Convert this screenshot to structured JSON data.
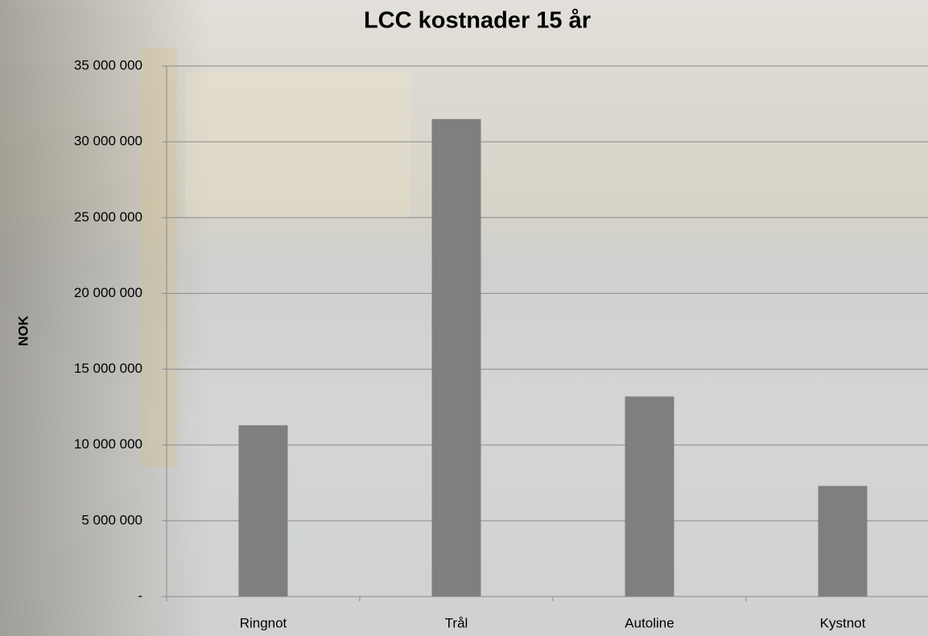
{
  "chart_data": {
    "type": "bar",
    "title": "LCC kostnader 15 år",
    "y_label": "NOK",
    "categories": [
      "Ringnot",
      "Trål",
      "Autoline",
      "Kystnot"
    ],
    "values": [
      11300000,
      31500000,
      13200000,
      7300000
    ],
    "color": "#7f7f7f",
    "ylim": [
      0,
      35000000
    ],
    "yticks": [
      {
        "value": 0,
        "label": "-"
      },
      {
        "value": 5000000,
        "label": "5 000 000"
      },
      {
        "value": 10000000,
        "label": "10 000 000"
      },
      {
        "value": 15000000,
        "label": "15 000 000"
      },
      {
        "value": 20000000,
        "label": "20 000 000"
      },
      {
        "value": 25000000,
        "label": "25 000 000"
      },
      {
        "value": 30000000,
        "label": "30 000 000"
      },
      {
        "value": 35000000,
        "label": "35 000 000"
      }
    ],
    "grid": true
  }
}
